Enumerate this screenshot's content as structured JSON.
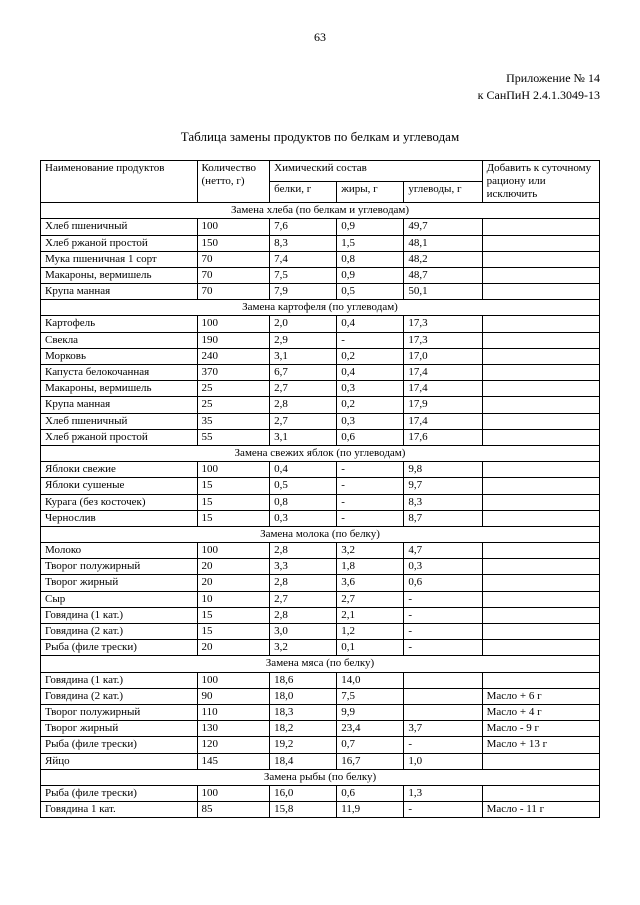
{
  "page_number": "63",
  "appendix": {
    "line1": "Приложение № 14",
    "line2": "к СанПиН 2.4.1.3049-13"
  },
  "title": "Таблица замены продуктов по белкам и углеводам",
  "headers": {
    "name": "Наименование продуктов",
    "qty": "Количество (нетто, г)",
    "chem": "Химический состав",
    "protein": "белки, г",
    "fat": "жиры, г",
    "carb": "углеводы, г",
    "add": "Добавить к суточному рациону или исключить"
  },
  "sections": [
    {
      "title": "Замена хлеба (по белкам и углеводам)",
      "rows": [
        [
          "Хлеб пшеничный",
          "100",
          "7,6",
          "0,9",
          "49,7",
          ""
        ],
        [
          "Хлеб ржаной простой",
          "150",
          "8,3",
          "1,5",
          "48,1",
          ""
        ],
        [
          "Мука пшеничная 1 сорт",
          "70",
          "7,4",
          "0,8",
          "48,2",
          ""
        ],
        [
          "Макароны, вермишель",
          "70",
          "7,5",
          "0,9",
          "48,7",
          ""
        ],
        [
          "Крупа манная",
          "70",
          "7,9",
          "0,5",
          "50,1",
          ""
        ]
      ]
    },
    {
      "title": "Замена картофеля (по углеводам)",
      "rows": [
        [
          "Картофель",
          "100",
          "2,0",
          "0,4",
          "17,3",
          ""
        ],
        [
          "Свекла",
          "190",
          "2,9",
          "-",
          "17,3",
          ""
        ],
        [
          "Морковь",
          "240",
          "3,1",
          "0,2",
          "17,0",
          ""
        ],
        [
          "Капуста белокочанная",
          "370",
          "6,7",
          "0,4",
          "17,4",
          ""
        ],
        [
          "Макароны, вермишель",
          "25",
          "2,7",
          "0,3",
          "17,4",
          ""
        ],
        [
          "Крупа манная",
          "25",
          "2,8",
          "0,2",
          "17,9",
          ""
        ],
        [
          "Хлеб пшеничный",
          "35",
          "2,7",
          "0,3",
          "17,4",
          ""
        ],
        [
          "Хлеб ржаной простой",
          "55",
          "3,1",
          "0,6",
          "17,6",
          ""
        ]
      ]
    },
    {
      "title": "Замена свежих яблок (по углеводам)",
      "rows": [
        [
          "Яблоки свежие",
          "100",
          "0,4",
          "-",
          "9,8",
          ""
        ],
        [
          "Яблоки сушеные",
          "15",
          "0,5",
          "-",
          "9,7",
          ""
        ],
        [
          "Курага (без косточек)",
          "15",
          "0,8",
          "-",
          "8,3",
          ""
        ],
        [
          "Чернослив",
          "15",
          "0,3",
          "-",
          "8,7",
          ""
        ]
      ]
    },
    {
      "title": "Замена молока (по белку)",
      "rows": [
        [
          "Молоко",
          "100",
          "2,8",
          "3,2",
          "4,7",
          ""
        ],
        [
          "Творог полужирный",
          "20",
          "3,3",
          "1,8",
          "0,3",
          ""
        ],
        [
          "Творог жирный",
          "20",
          "2,8",
          "3,6",
          "0,6",
          ""
        ],
        [
          "Сыр",
          "10",
          "2,7",
          "2,7",
          "-",
          ""
        ],
        [
          "Говядина (1 кат.)",
          "15",
          "2,8",
          "2,1",
          "-",
          ""
        ],
        [
          "Говядина (2 кат.)",
          "15",
          "3,0",
          "1,2",
          "-",
          ""
        ],
        [
          "Рыба (филе трески)",
          "20",
          "3,2",
          "0,1",
          "-",
          ""
        ]
      ]
    },
    {
      "title": "Замена мяса (по белку)",
      "rows": [
        [
          "Говядина (1 кат.)",
          "100",
          "18,6",
          "14,0",
          "",
          ""
        ],
        [
          "Говядина (2 кат.)",
          "90",
          "18,0",
          "7,5",
          "",
          "Масло + 6 г"
        ],
        [
          "Творог полужирный",
          "110",
          "18,3",
          "9,9",
          "",
          "Масло + 4 г"
        ],
        [
          "Творог жирный",
          "130",
          "18,2",
          "23,4",
          "3,7",
          "Масло - 9 г"
        ],
        [
          "Рыба (филе трески)",
          "120",
          "19,2",
          "0,7",
          "-",
          "Масло + 13 г"
        ],
        [
          "Яйцо",
          "145",
          "18,4",
          "16,7",
          "1,0",
          ""
        ]
      ]
    },
    {
      "title": "Замена рыбы (по белку)",
      "rows": [
        [
          "Рыба (филе трески)",
          "100",
          "16,0",
          "0,6",
          "1,3",
          ""
        ],
        [
          "Говядина 1 кат.",
          "85",
          "15,8",
          "11,9",
          "-",
          "Масло - 11 г"
        ]
      ]
    }
  ]
}
